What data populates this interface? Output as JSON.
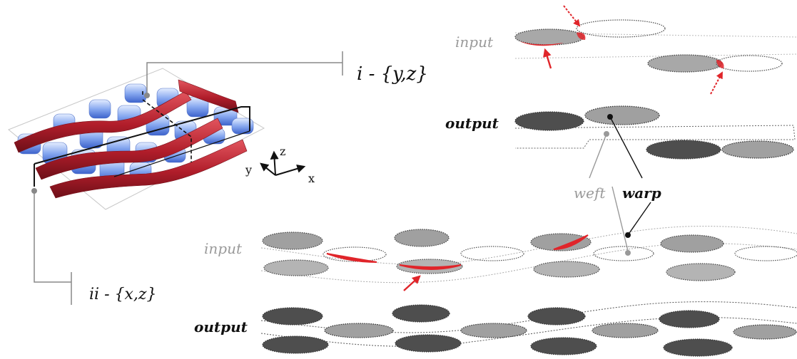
{
  "labels": {
    "section_i": "i - {y,z}",
    "section_ii": "ii - {x,z}",
    "axis_z": "z",
    "axis_y": "y",
    "axis_x": "x",
    "input_top": "input",
    "output_top": "output",
    "input_bottom": "input",
    "output_bottom": "output",
    "weft": "weft",
    "warp": "warp"
  },
  "colors": {
    "weft_red": "#c0222e",
    "warp_blue": "#6f93e6",
    "highlight_red": "#e0252a",
    "dark_fill": "#5a5a5a",
    "mid_fill": "#9c9c9c",
    "light_fill": "#b8b8b8",
    "dot_border": "#444444",
    "guide_grey": "#8a8a8a"
  }
}
